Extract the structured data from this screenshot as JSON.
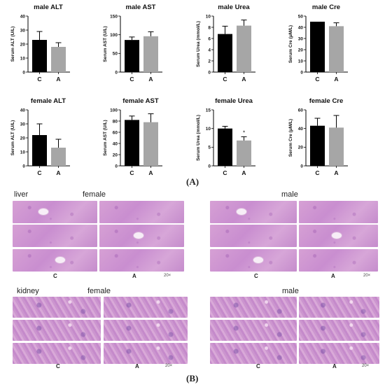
{
  "chart_data": [
    {
      "type": "bar",
      "title": "male ALT",
      "ylabel": "Serum ALT (U/L)",
      "categories": [
        "C",
        "A"
      ],
      "values": [
        23,
        18
      ],
      "errors": [
        6,
        3
      ],
      "ylim": [
        0,
        40
      ],
      "yticks": [
        0,
        10,
        20,
        30,
        40
      ],
      "colors": [
        "#000000",
        "#a6a6a6"
      ]
    },
    {
      "type": "bar",
      "title": "male AST",
      "ylabel": "Serum AST (U/L)",
      "categories": [
        "C",
        "A"
      ],
      "values": [
        86,
        96
      ],
      "errors": [
        8,
        12
      ],
      "ylim": [
        0,
        150
      ],
      "yticks": [
        0,
        50,
        100,
        150
      ],
      "colors": [
        "#000000",
        "#a6a6a6"
      ]
    },
    {
      "type": "bar",
      "title": "male Urea",
      "ylabel": "Serum Urea (mmol/L)",
      "categories": [
        "C",
        "A"
      ],
      "values": [
        6.8,
        8.3
      ],
      "errors": [
        1.4,
        1.0
      ],
      "ylim": [
        0,
        10
      ],
      "yticks": [
        0,
        2,
        4,
        6,
        8,
        10
      ],
      "colors": [
        "#000000",
        "#a6a6a6"
      ]
    },
    {
      "type": "bar",
      "title": "male Cre",
      "ylabel": "Serum Cre (μM/L)",
      "categories": [
        "C",
        "A"
      ],
      "values": [
        45,
        41
      ],
      "errors": [
        0,
        3
      ],
      "ylim": [
        0,
        50
      ],
      "yticks": [
        0,
        10,
        20,
        30,
        40,
        50
      ],
      "colors": [
        "#000000",
        "#a6a6a6"
      ]
    },
    {
      "type": "bar",
      "title": "female ALT",
      "ylabel": "Serum ALT (U/L)",
      "categories": [
        "C",
        "A"
      ],
      "values": [
        22,
        13
      ],
      "errors": [
        8,
        6
      ],
      "ylim": [
        0,
        40
      ],
      "yticks": [
        0,
        10,
        20,
        30,
        40
      ],
      "colors": [
        "#000000",
        "#a6a6a6"
      ]
    },
    {
      "type": "bar",
      "title": "female AST",
      "ylabel": "Serum AST (U/L)",
      "categories": [
        "C",
        "A"
      ],
      "values": [
        82,
        78
      ],
      "errors": [
        7,
        15
      ],
      "ylim": [
        0,
        100
      ],
      "yticks": [
        0,
        20,
        40,
        60,
        80,
        100
      ],
      "colors": [
        "#000000",
        "#a6a6a6"
      ]
    },
    {
      "type": "bar",
      "title": "female Urea",
      "ylabel": "Serum Urea (mmol/L)",
      "categories": [
        "C",
        "A"
      ],
      "values": [
        10,
        6.8
      ],
      "errors": [
        0.6,
        1.0
      ],
      "ylim": [
        0,
        15
      ],
      "yticks": [
        0,
        5,
        10,
        15
      ],
      "colors": [
        "#000000",
        "#a6a6a6"
      ],
      "annotations": [
        {
          "category": "A",
          "text": "*"
        }
      ]
    },
    {
      "type": "bar",
      "title": "female Cre",
      "ylabel": "Serum Cre (μM/L)",
      "categories": [
        "C",
        "A"
      ],
      "values": [
        43,
        41
      ],
      "errors": [
        8,
        13
      ],
      "ylim": [
        0,
        60
      ],
      "yticks": [
        0,
        20,
        40,
        60
      ],
      "colors": [
        "#000000",
        "#a6a6a6"
      ]
    }
  ],
  "labels": {
    "panel_a": "(A)",
    "panel_b": "(B)"
  },
  "histology": {
    "liver": {
      "tissue": "liver",
      "female": "female",
      "male": "male",
      "c": "C",
      "a": "A",
      "mag": "20×"
    },
    "kidney": {
      "tissue": "kidney",
      "female": "female",
      "male": "male",
      "c": "C",
      "a": "A",
      "mag": "20×"
    }
  }
}
